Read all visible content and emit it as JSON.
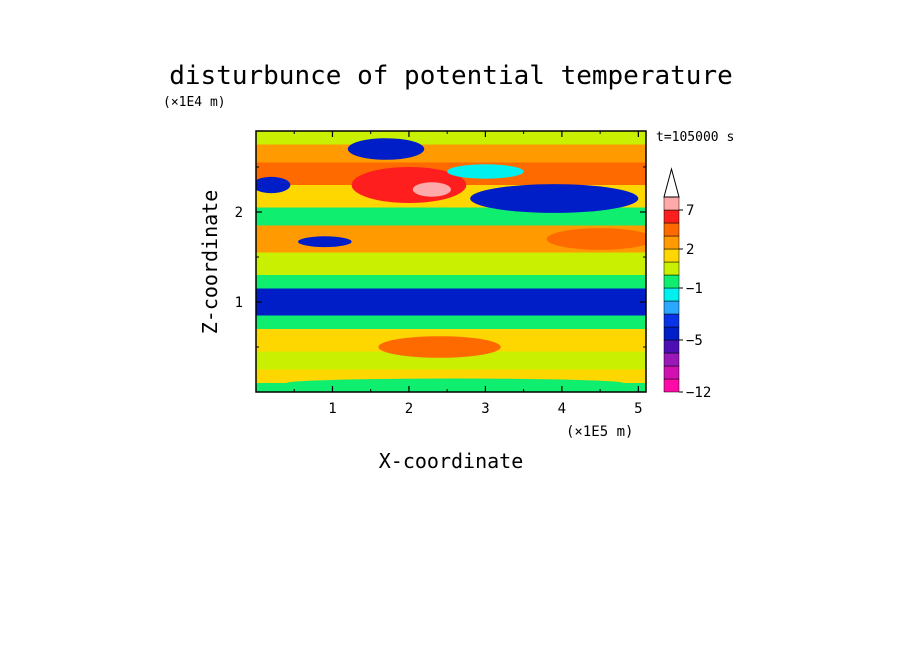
{
  "chart_data": {
    "type": "heatmap",
    "title": "disturbunce of potential temperature",
    "xlabel": "X-coordinate",
    "ylabel": "Z-coordinate",
    "x_unit": "(×1E5 m)",
    "y_unit": "(×1E4 m)",
    "time_label": "t=105000 s",
    "xlim": [
      0,
      5.1
    ],
    "ylim": [
      0,
      2.9
    ],
    "x_ticks": [
      1,
      2,
      3,
      4,
      5
    ],
    "y_ticks": [
      1,
      2
    ],
    "colorbar": {
      "levels": [
        -12,
        -10,
        -8,
        -6,
        -5,
        -4,
        -3,
        -2,
        -1,
        0,
        1,
        2,
        3,
        5,
        7,
        9
      ],
      "labeled_ticks": [
        {
          "value": 7,
          "label": "7"
        },
        {
          "value": 2,
          "label": "2"
        },
        {
          "value": -1,
          "label": "−1"
        },
        {
          "value": -5,
          "label": "−5"
        },
        {
          "value": -12,
          "label": "−12"
        }
      ],
      "colors": [
        "#ff0aa8",
        "#d010b0",
        "#9a18b8",
        "#4b0fb5",
        "#001ec8",
        "#0a32e6",
        "#2aa8ff",
        "#00f0f0",
        "#10ee70",
        "#c8f000",
        "#ffd700",
        "#ff9a00",
        "#ff6a00",
        "#ff1e1e",
        "#ffaaaa"
      ],
      "extend": "max"
    },
    "bands": [
      {
        "z0": 2.75,
        "z1": 2.9,
        "value": 0.5
      },
      {
        "z0": 2.55,
        "z1": 2.75,
        "value": 2
      },
      {
        "z0": 2.3,
        "z1": 2.55,
        "value": 3
      },
      {
        "z0": 2.05,
        "z1": 2.3,
        "value": 1.5
      },
      {
        "z0": 1.85,
        "z1": 2.05,
        "value": -0.5
      },
      {
        "z0": 1.55,
        "z1": 1.85,
        "value": 2
      },
      {
        "z0": 1.3,
        "z1": 1.55,
        "value": 0
      },
      {
        "z0": 1.15,
        "z1": 1.3,
        "value": -1
      },
      {
        "z0": 0.85,
        "z1": 1.15,
        "value": -5
      },
      {
        "z0": 0.7,
        "z1": 0.85,
        "value": -1
      },
      {
        "z0": 0.45,
        "z1": 0.7,
        "value": 1.5
      },
      {
        "z0": 0.25,
        "z1": 0.45,
        "value": 0.5
      },
      {
        "z0": 0.1,
        "z1": 0.25,
        "value": 1
      },
      {
        "z0": 0.0,
        "z1": 0.1,
        "value": -0.5
      }
    ],
    "features": [
      {
        "x": 2.0,
        "z": 2.3,
        "rx": 0.75,
        "rz": 0.2,
        "value": 5
      },
      {
        "x": 2.3,
        "z": 2.25,
        "rx": 0.25,
        "rz": 0.08,
        "value": 7
      },
      {
        "x": 3.9,
        "z": 2.15,
        "rx": 1.1,
        "rz": 0.16,
        "value": -5
      },
      {
        "x": 1.7,
        "z": 2.7,
        "rx": 0.5,
        "rz": 0.12,
        "value": -5
      },
      {
        "x": 3.0,
        "z": 2.45,
        "rx": 0.5,
        "rz": 0.08,
        "value": -2
      },
      {
        "x": 0.9,
        "z": 1.67,
        "rx": 0.35,
        "rz": 0.06,
        "value": -5
      },
      {
        "x": 0.2,
        "z": 2.3,
        "rx": 0.25,
        "rz": 0.09,
        "value": -5
      },
      {
        "x": 2.4,
        "z": 0.5,
        "rx": 0.8,
        "rz": 0.12,
        "value": 3
      },
      {
        "x": 4.5,
        "z": 1.7,
        "rx": 0.7,
        "rz": 0.12,
        "value": 3
      },
      {
        "x": 2.6,
        "z": 0.1,
        "rx": 2.2,
        "rz": 0.05,
        "value": -1
      }
    ]
  }
}
